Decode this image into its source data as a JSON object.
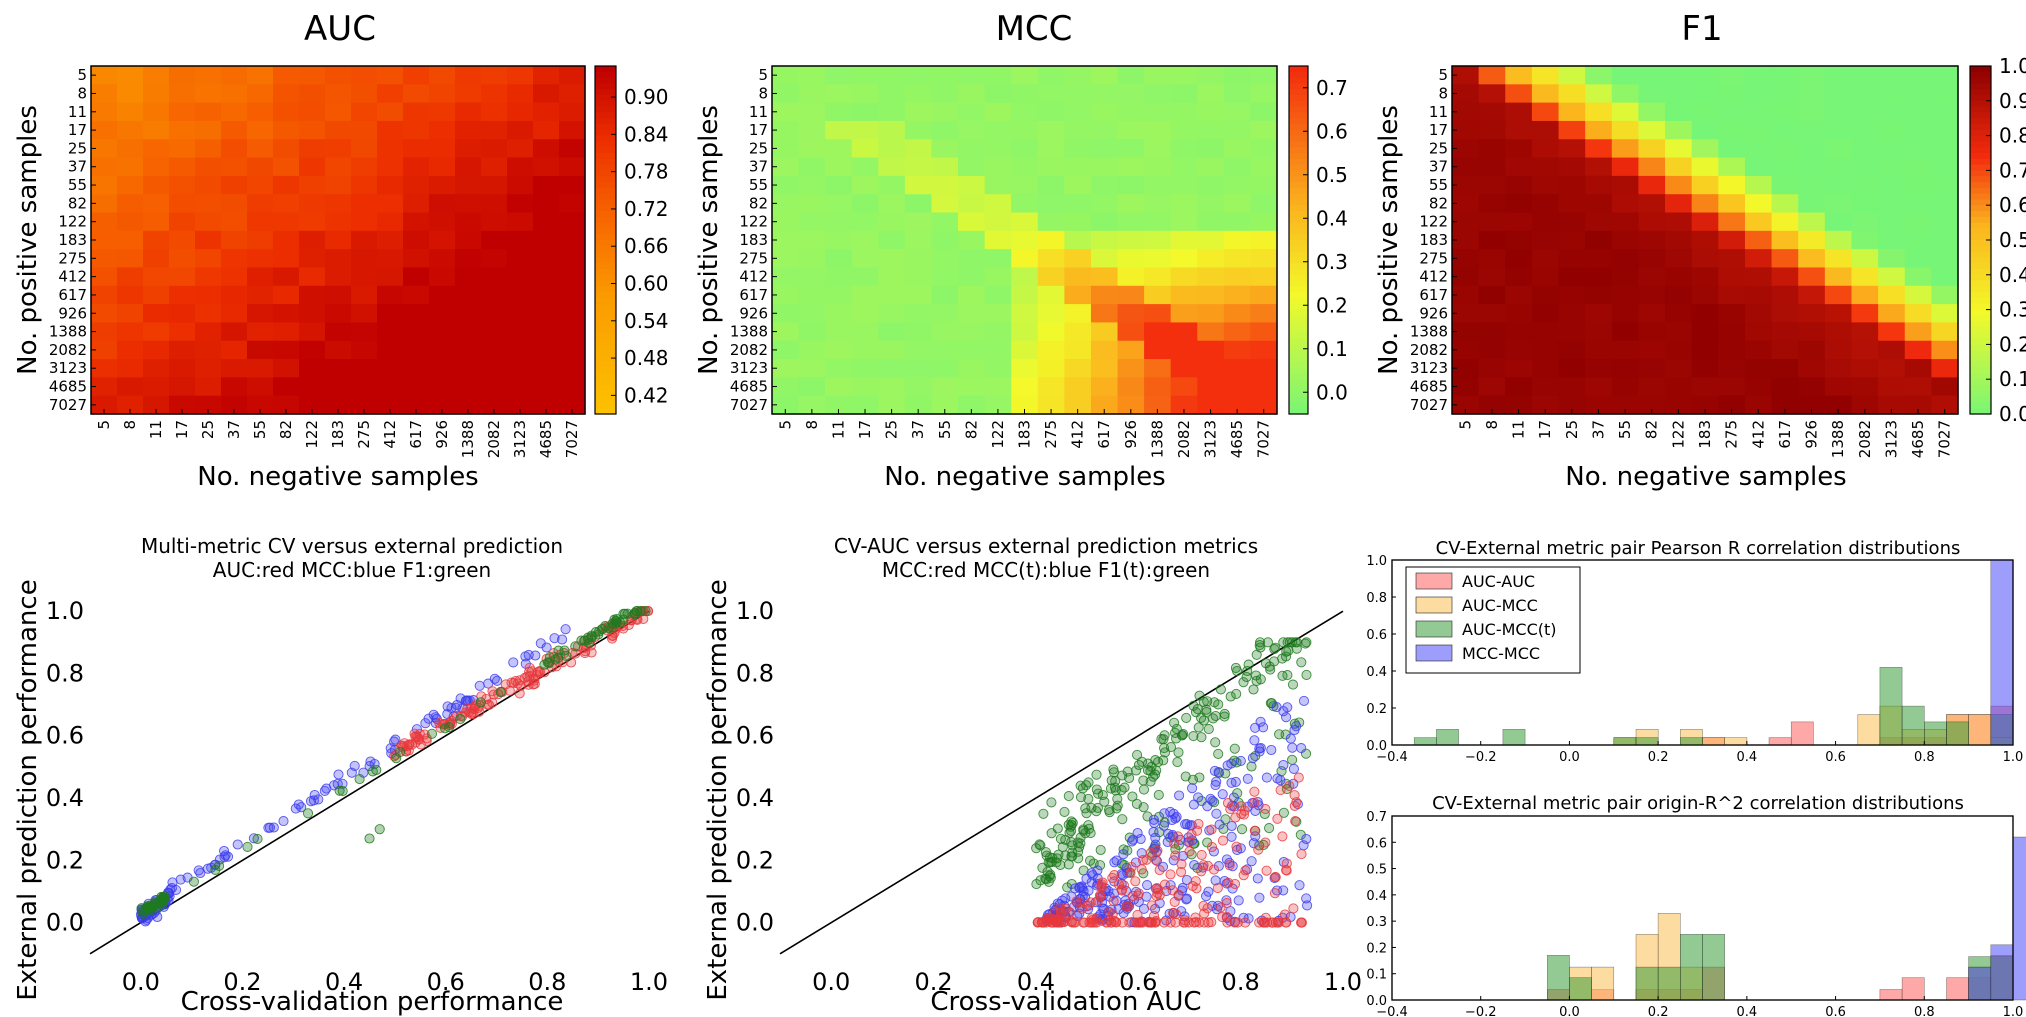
{
  "axis_values": [
    "5",
    "8",
    "11",
    "17",
    "25",
    "37",
    "55",
    "82",
    "122",
    "183",
    "275",
    "412",
    "617",
    "926",
    "1388",
    "2082",
    "3123",
    "4685",
    "7027"
  ],
  "colors": {
    "green": "#76f576",
    "yellow": "#f3f92a",
    "orange": "#fbb41d",
    "red": "#f32b0d",
    "darkred": "#8f0000",
    "series_red": "#e8383c",
    "series_blue": "#3d3dee",
    "series_green": "#1f7a1f"
  },
  "chart_data": [
    {
      "type": "heatmap",
      "title": "AUC",
      "xlabel": "No. negative samples",
      "ylabel": "No. positive samples",
      "x_categories": [
        "5",
        "8",
        "11",
        "17",
        "25",
        "37",
        "55",
        "82",
        "122",
        "183",
        "275",
        "412",
        "617",
        "926",
        "1388",
        "2082",
        "3123",
        "4685",
        "7027"
      ],
      "y_categories": [
        "5",
        "8",
        "11",
        "17",
        "25",
        "37",
        "55",
        "82",
        "122",
        "183",
        "275",
        "412",
        "617",
        "926",
        "1388",
        "2082",
        "3123",
        "4685",
        "7027"
      ],
      "colorbar": {
        "min": 0.39,
        "max": 0.95,
        "ticks": [
          "0.90",
          "0.84",
          "0.78",
          "0.72",
          "0.66",
          "0.60",
          "0.54",
          "0.48",
          "0.42"
        ],
        "tick_values": [
          0.9,
          0.84,
          0.78,
          0.72,
          0.66,
          0.6,
          0.54,
          0.48,
          0.42
        ],
        "colormap": "autumn_r"
      },
      "value_model": "approx 0.63 + 0.012*(i+j) per cell, range ~0.60-0.95"
    },
    {
      "type": "heatmap",
      "title": "MCC",
      "xlabel": "No. negative samples",
      "ylabel": "No. positive samples",
      "x_categories": [
        "5",
        "8",
        "11",
        "17",
        "25",
        "37",
        "55",
        "82",
        "122",
        "183",
        "275",
        "412",
        "617",
        "926",
        "1388",
        "2082",
        "3123",
        "4685",
        "7027"
      ],
      "y_categories": [
        "5",
        "8",
        "11",
        "17",
        "25",
        "37",
        "55",
        "82",
        "122",
        "183",
        "275",
        "412",
        "617",
        "926",
        "1388",
        "2082",
        "3123",
        "4685",
        "7027"
      ],
      "colorbar": {
        "min": -0.05,
        "max": 0.75,
        "ticks": [
          "0.7",
          "0.6",
          "0.5",
          "0.4",
          "0.3",
          "0.2",
          "0.1",
          "0.0"
        ],
        "tick_values": [
          0.7,
          0.6,
          0.5,
          0.4,
          0.3,
          0.2,
          0.1,
          0.0
        ],
        "colormap": "green-yellow-red"
      },
      "value_model": "near 0 except along diagonal band (0.1-0.3) and lower-right corner (up to ~0.75)"
    },
    {
      "type": "heatmap",
      "title": "F1",
      "xlabel": "No. negative samples",
      "ylabel": "No. positive samples",
      "x_categories": [
        "5",
        "8",
        "11",
        "17",
        "25",
        "37",
        "55",
        "82",
        "122",
        "183",
        "275",
        "412",
        "617",
        "926",
        "1388",
        "2082",
        "3123",
        "4685",
        "7027"
      ],
      "y_categories": [
        "5",
        "8",
        "11",
        "17",
        "25",
        "37",
        "55",
        "82",
        "122",
        "183",
        "275",
        "412",
        "617",
        "926",
        "1388",
        "2082",
        "3123",
        "4685",
        "7027"
      ],
      "colorbar": {
        "min": 0.0,
        "max": 1.0,
        "ticks": [
          "1.0",
          "0.9",
          "0.8",
          "0.7",
          "0.6",
          "0.5",
          "0.4",
          "0.3",
          "0.2",
          "0.1",
          "0.0"
        ],
        "tick_values": [
          1.0,
          0.9,
          0.8,
          0.7,
          0.6,
          0.5,
          0.4,
          0.3,
          0.2,
          0.1,
          0.0
        ],
        "colormap": "green-yellow-red-darkred"
      },
      "value_model": "~1.0 below diagonal (positives >= negatives), decaying to 0 above diagonal"
    },
    {
      "type": "scatter",
      "title": "Multi-metric CV versus external prediction",
      "subtitle": "AUC:red MCC:blue F1:green",
      "xlabel": "Cross-validation performance",
      "ylabel": "External prediction performance",
      "xlim": [
        -0.1,
        1.0
      ],
      "ylim": [
        -0.1,
        1.1
      ],
      "x_ticks": [
        "0.0",
        "0.2",
        "0.4",
        "0.6",
        "0.8",
        "1.0"
      ],
      "y_ticks": [
        "0.0",
        "0.2",
        "0.4",
        "0.6",
        "0.8",
        "1.0"
      ],
      "reference_line": "y = x",
      "series": [
        {
          "color": "red",
          "x_range": [
            0.5,
            1.0
          ],
          "trend": "y ≈ x + 0.08"
        },
        {
          "color": "blue",
          "x_range": [
            -0.02,
            0.9
          ],
          "trend": "y ≈ x + 0.1, dense near 0"
        },
        {
          "color": "green",
          "x_range": [
            0.0,
            1.0
          ],
          "trend": "y ≈ x + 0.05, dense near 0 and 1"
        }
      ]
    },
    {
      "type": "scatter",
      "title": "CV-AUC versus external prediction metrics",
      "subtitle": "MCC:red MCC(t):blue F1(t):green",
      "xlabel": "Cross-validation AUC",
      "ylabel": "External prediction performance",
      "xlim": [
        -0.1,
        1.0
      ],
      "ylim": [
        -0.1,
        1.1
      ],
      "x_ticks": [
        "0.0",
        "0.2",
        "0.4",
        "0.6",
        "0.8",
        "1.0"
      ],
      "y_ticks": [
        "0.0",
        "0.2",
        "0.4",
        "0.6",
        "0.8",
        "1.0"
      ],
      "reference_line": "y = x",
      "series": [
        {
          "color": "red",
          "x_range": [
            0.4,
            0.93
          ],
          "y_range": [
            0.0,
            0.6
          ]
        },
        {
          "color": "blue",
          "x_range": [
            0.4,
            0.93
          ],
          "y_range": [
            0.0,
            0.8
          ]
        },
        {
          "color": "green",
          "x_range": [
            0.4,
            0.93
          ],
          "y_range": [
            0.0,
            0.88
          ]
        }
      ]
    },
    {
      "type": "bar",
      "title": "CV-External metric pair Pearson R correlation distributions",
      "xlim": [
        -0.4,
        1.0
      ],
      "ylim": [
        0,
        1.0
      ],
      "x_ticks": [
        "−0.4",
        "−0.2",
        "0.0",
        "0.2",
        "0.4",
        "0.6",
        "0.8",
        "1.0"
      ],
      "y_ticks": [
        "0.0",
        "0.2",
        "0.4",
        "0.6",
        "0.8",
        "1.0"
      ],
      "legend": [
        "AUC-AUC",
        "AUC-MCC",
        "AUC-MCC(t)",
        "MCC-MCC"
      ],
      "legend_position": "upper-left",
      "bin_width": 0.05,
      "series": [
        {
          "name": "AUC-AUC",
          "color": "red",
          "bins": [
            [
              0.3,
              0.04
            ],
            [
              0.45,
              0.04
            ],
            [
              0.5,
              0.125
            ],
            [
              0.7,
              0.04
            ],
            [
              0.75,
              0.04
            ],
            [
              0.8,
              0.04
            ],
            [
              0.85,
              0.165
            ],
            [
              0.9,
              0.165
            ],
            [
              0.95,
              0.21
            ]
          ]
        },
        {
          "name": "AUC-MCC",
          "color": "orange",
          "bins": [
            [
              0.1,
              0.04
            ],
            [
              0.15,
              0.085
            ],
            [
              0.25,
              0.085
            ],
            [
              0.3,
              0.04
            ],
            [
              0.35,
              0.04
            ],
            [
              0.65,
              0.165
            ],
            [
              0.7,
              0.21
            ],
            [
              0.75,
              0.085
            ],
            [
              0.8,
              0.085
            ],
            [
              0.85,
              0.165
            ],
            [
              0.9,
              0.165
            ],
            [
              0.95,
              0.04
            ]
          ]
        },
        {
          "name": "AUC-MCC(t)",
          "color": "green",
          "bins": [
            [
              -0.35,
              0.04
            ],
            [
              -0.3,
              0.085
            ],
            [
              -0.15,
              0.085
            ],
            [
              0.1,
              0.04
            ],
            [
              0.15,
              0.04
            ],
            [
              0.25,
              0.04
            ],
            [
              0.7,
              0.42
            ],
            [
              0.75,
              0.21
            ],
            [
              0.8,
              0.125
            ],
            [
              0.85,
              0.125
            ],
            [
              0.95,
              0.165
            ]
          ]
        },
        {
          "name": "MCC-MCC",
          "color": "blue",
          "bins": [
            [
              0.95,
              1.0
            ]
          ]
        }
      ]
    },
    {
      "type": "bar",
      "title": "CV-External metric pair origin-R^2 correlation distributions",
      "xlim": [
        -0.4,
        1.0
      ],
      "ylim": [
        0,
        0.7
      ],
      "x_ticks": [
        "−0.4",
        "−0.2",
        "0.0",
        "0.2",
        "0.4",
        "0.6",
        "0.8",
        "1.0"
      ],
      "y_ticks": [
        "0.0",
        "0.1",
        "0.2",
        "0.3",
        "0.4",
        "0.5",
        "0.6",
        "0.7"
      ],
      "bin_width": 0.05,
      "series": [
        {
          "name": "AUC-AUC",
          "color": "red",
          "bins": [
            [
              -0.05,
              0.04
            ],
            [
              0.05,
              0.04
            ],
            [
              0.15,
              0.04
            ],
            [
              0.2,
              0.04
            ],
            [
              0.25,
              0.04
            ],
            [
              0.3,
              0.125
            ],
            [
              0.7,
              0.04
            ],
            [
              0.75,
              0.085
            ],
            [
              0.85,
              0.085
            ],
            [
              0.9,
              0.085
            ],
            [
              0.95,
              0.165
            ]
          ]
        },
        {
          "name": "AUC-MCC",
          "color": "orange",
          "bins": [
            [
              0.0,
              0.125
            ],
            [
              0.05,
              0.125
            ],
            [
              0.15,
              0.25
            ],
            [
              0.2,
              0.33
            ],
            [
              0.25,
              0.125
            ],
            [
              0.9,
              0.125
            ],
            [
              0.95,
              0.17
            ]
          ]
        },
        {
          "name": "AUC-MCC(t)",
          "color": "green",
          "bins": [
            [
              -0.05,
              0.17
            ],
            [
              0.0,
              0.085
            ],
            [
              0.15,
              0.125
            ],
            [
              0.2,
              0.125
            ],
            [
              0.25,
              0.25
            ],
            [
              0.3,
              0.25
            ],
            [
              0.9,
              0.165
            ],
            [
              0.95,
              0.165
            ]
          ]
        },
        {
          "name": "MCC-MCC",
          "color": "blue",
          "bins": [
            [
              0.9,
              0.125
            ],
            [
              0.95,
              0.21
            ],
            [
              1.0,
              0.62
            ]
          ]
        }
      ]
    }
  ]
}
